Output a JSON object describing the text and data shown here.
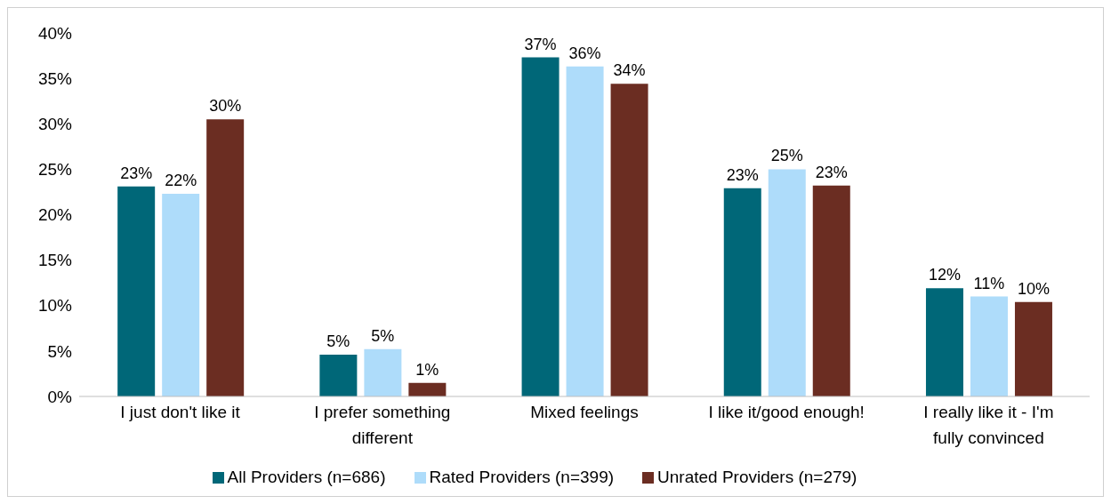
{
  "chart_data": {
    "type": "bar",
    "categories": [
      "I just don't like it",
      "I prefer something different",
      "Mixed feelings",
      "I like it/good enough!",
      "I really like it - I'm fully convinced"
    ],
    "series": [
      {
        "name": "All Providers (n=686)",
        "color": "#006778",
        "values": [
          23.1,
          4.6,
          37.3,
          22.9,
          11.9
        ],
        "value_labels": [
          "23%",
          "5%",
          "37%",
          "23%",
          "12%"
        ]
      },
      {
        "name": "Rated Providers (n=399)",
        "color": "#aedcfa",
        "values": [
          22.3,
          5.2,
          36.3,
          25.0,
          11.0
        ],
        "value_labels": [
          "22%",
          "5%",
          "36%",
          "25%",
          "11%"
        ]
      },
      {
        "name": "Unrated Providers (n=279)",
        "color": "#6b2d22",
        "values": [
          30.5,
          1.5,
          34.4,
          23.2,
          10.4
        ],
        "value_labels": [
          "30%",
          "1%",
          "34%",
          "23%",
          "10%"
        ]
      }
    ],
    "ylim": [
      0,
      40
    ],
    "yticks": [
      {
        "value": 0,
        "label": "0%"
      },
      {
        "value": 5,
        "label": "5%"
      },
      {
        "value": 10,
        "label": "10%"
      },
      {
        "value": 15,
        "label": "15%"
      },
      {
        "value": 20,
        "label": "20%"
      },
      {
        "value": 25,
        "label": "25%"
      },
      {
        "value": 30,
        "label": "30%"
      },
      {
        "value": 35,
        "label": "35%"
      },
      {
        "value": 40,
        "label": "40%"
      }
    ],
    "grid": false,
    "legend": "bottom"
  }
}
